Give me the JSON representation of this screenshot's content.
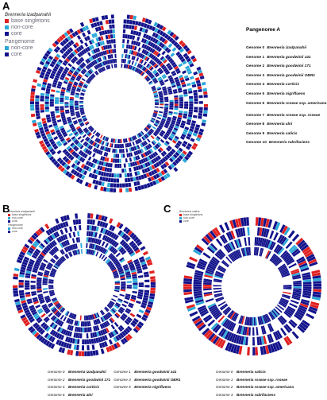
{
  "panels": {
    "a": {
      "letter": "A",
      "legend_species": "Brenneria izadpanahii",
      "legend_items": [
        {
          "label": "base singletons",
          "color": "#e02020"
        },
        {
          "label": "non-core",
          "color": "#2aa8d8"
        },
        {
          "label": "core",
          "color": "#12128c"
        }
      ],
      "legend2_title": "Pangenome",
      "legend2_items": [
        {
          "label": "non-core",
          "color": "#2aa8d8"
        },
        {
          "label": "core",
          "color": "#12128c"
        }
      ],
      "pangenome_title": "Pangenome A",
      "genomes": [
        {
          "id": "Genome 0",
          "name": "Brenneria izadpanahii"
        },
        {
          "id": "Genome 1",
          "name": "Brenneria goodwinii 141"
        },
        {
          "id": "Genome 2",
          "name": "Brenneria goodwinii 171"
        },
        {
          "id": "Genome 3",
          "name": "Brenneria goodwinii OBR1"
        },
        {
          "id": "Genome 4",
          "name": "Brenneria corticis"
        },
        {
          "id": "Genome 5",
          "name": "Brenneria nigrifluens"
        },
        {
          "id": "Genome 6",
          "name": "Brenneria roseae ssp. americana"
        },
        {
          "id": "Genome 7",
          "name": "Brenneria roseae ssp. roseae"
        },
        {
          "id": "Genome 8",
          "name": "Brenneria alni"
        },
        {
          "id": "Genome 9",
          "name": "Brenneria salicis"
        },
        {
          "id": "Genome 10",
          "name": "Brenneria rubrifaciens"
        }
      ]
    },
    "b": {
      "letter": "B",
      "legend_species": "Brenneria izadpanahii",
      "legend_items": [
        {
          "label": "base singletons",
          "color": "#e02020"
        },
        {
          "label": "non-core",
          "color": "#2aa8d8"
        },
        {
          "label": "core",
          "color": "#12128c"
        }
      ],
      "legend2_title": "Pangenome",
      "legend2_items": [
        {
          "label": "non-core",
          "color": "#2aa8d8"
        },
        {
          "label": "core",
          "color": "#12128c"
        }
      ],
      "genomes": [
        {
          "id": "Genome 0",
          "name": "Brenneria izadpanahii"
        },
        {
          "id": "Genome 1",
          "name": "Brenneria goodwinii 141"
        },
        {
          "id": "Genome 2",
          "name": "Brenneria goodwinii 171"
        },
        {
          "id": "Genome 3",
          "name": "Brenneria goodwinii OBR1"
        },
        {
          "id": "Genome 4",
          "name": "Brenneria corticis"
        },
        {
          "id": "Genome 5",
          "name": "Brenneria nigrifluens"
        },
        {
          "id": "Genome 6",
          "name": "Brenneria alni"
        }
      ]
    },
    "c": {
      "letter": "C",
      "legend_species": "Brenneria salicis",
      "legend_items": [
        {
          "label": "base singletons",
          "color": "#e02020"
        },
        {
          "label": "non-core",
          "color": "#2aa8d8"
        },
        {
          "label": "core",
          "color": "#12128c"
        }
      ],
      "genomes": [
        {
          "id": "Genome 0",
          "name": "Brenneria salicis"
        },
        {
          "id": "Genome 1",
          "name": "Brenneria roseae ssp. roseae"
        },
        {
          "id": "Genome 2",
          "name": "Brenneria roseae ssp. americana"
        },
        {
          "id": "Genome 3",
          "name": "Brenneria rubrifaciens"
        }
      ]
    }
  },
  "colors": {
    "core": "#12128c",
    "noncore": "#2aa8d8",
    "singleton": "#e02020",
    "gap": "#ffffff"
  }
}
